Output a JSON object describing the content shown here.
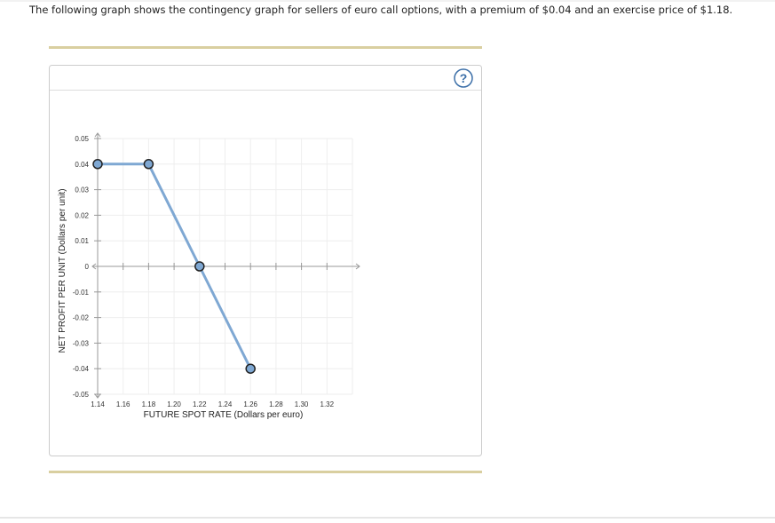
{
  "question": "The following graph shows the contingency graph for sellers of euro call options, with a premium of $0.04 and an exercise price of $1.18.",
  "help_icon": "?",
  "chart_data": {
    "type": "line",
    "x_label": "FUTURE SPOT RATE (Dollars per euro)",
    "y_label": "NET PROFIT PER UNIT (Dollars per unit)",
    "series": [
      {
        "color": "#7fa8d3",
        "x": [
          1.14,
          1.18,
          1.22,
          1.26
        ],
        "values": [
          0.04,
          0.04,
          0,
          -0.04
        ]
      }
    ],
    "xlim": [
      1.14,
      1.34
    ],
    "ylim": [
      -0.05,
      0.05
    ],
    "xticks": [
      1.14,
      1.16,
      1.18,
      {
        "value": 1.2,
        "label": "1.20"
      },
      1.22,
      1.24,
      1.26,
      1.28,
      {
        "value": 1.3,
        "label": "1.30"
      },
      1.32
    ],
    "yticks": [
      0.05,
      0.04,
      0.03,
      0.02,
      0.01,
      0,
      -0.01,
      -0.02,
      -0.03,
      -0.04,
      -0.05
    ],
    "grid": true
  }
}
